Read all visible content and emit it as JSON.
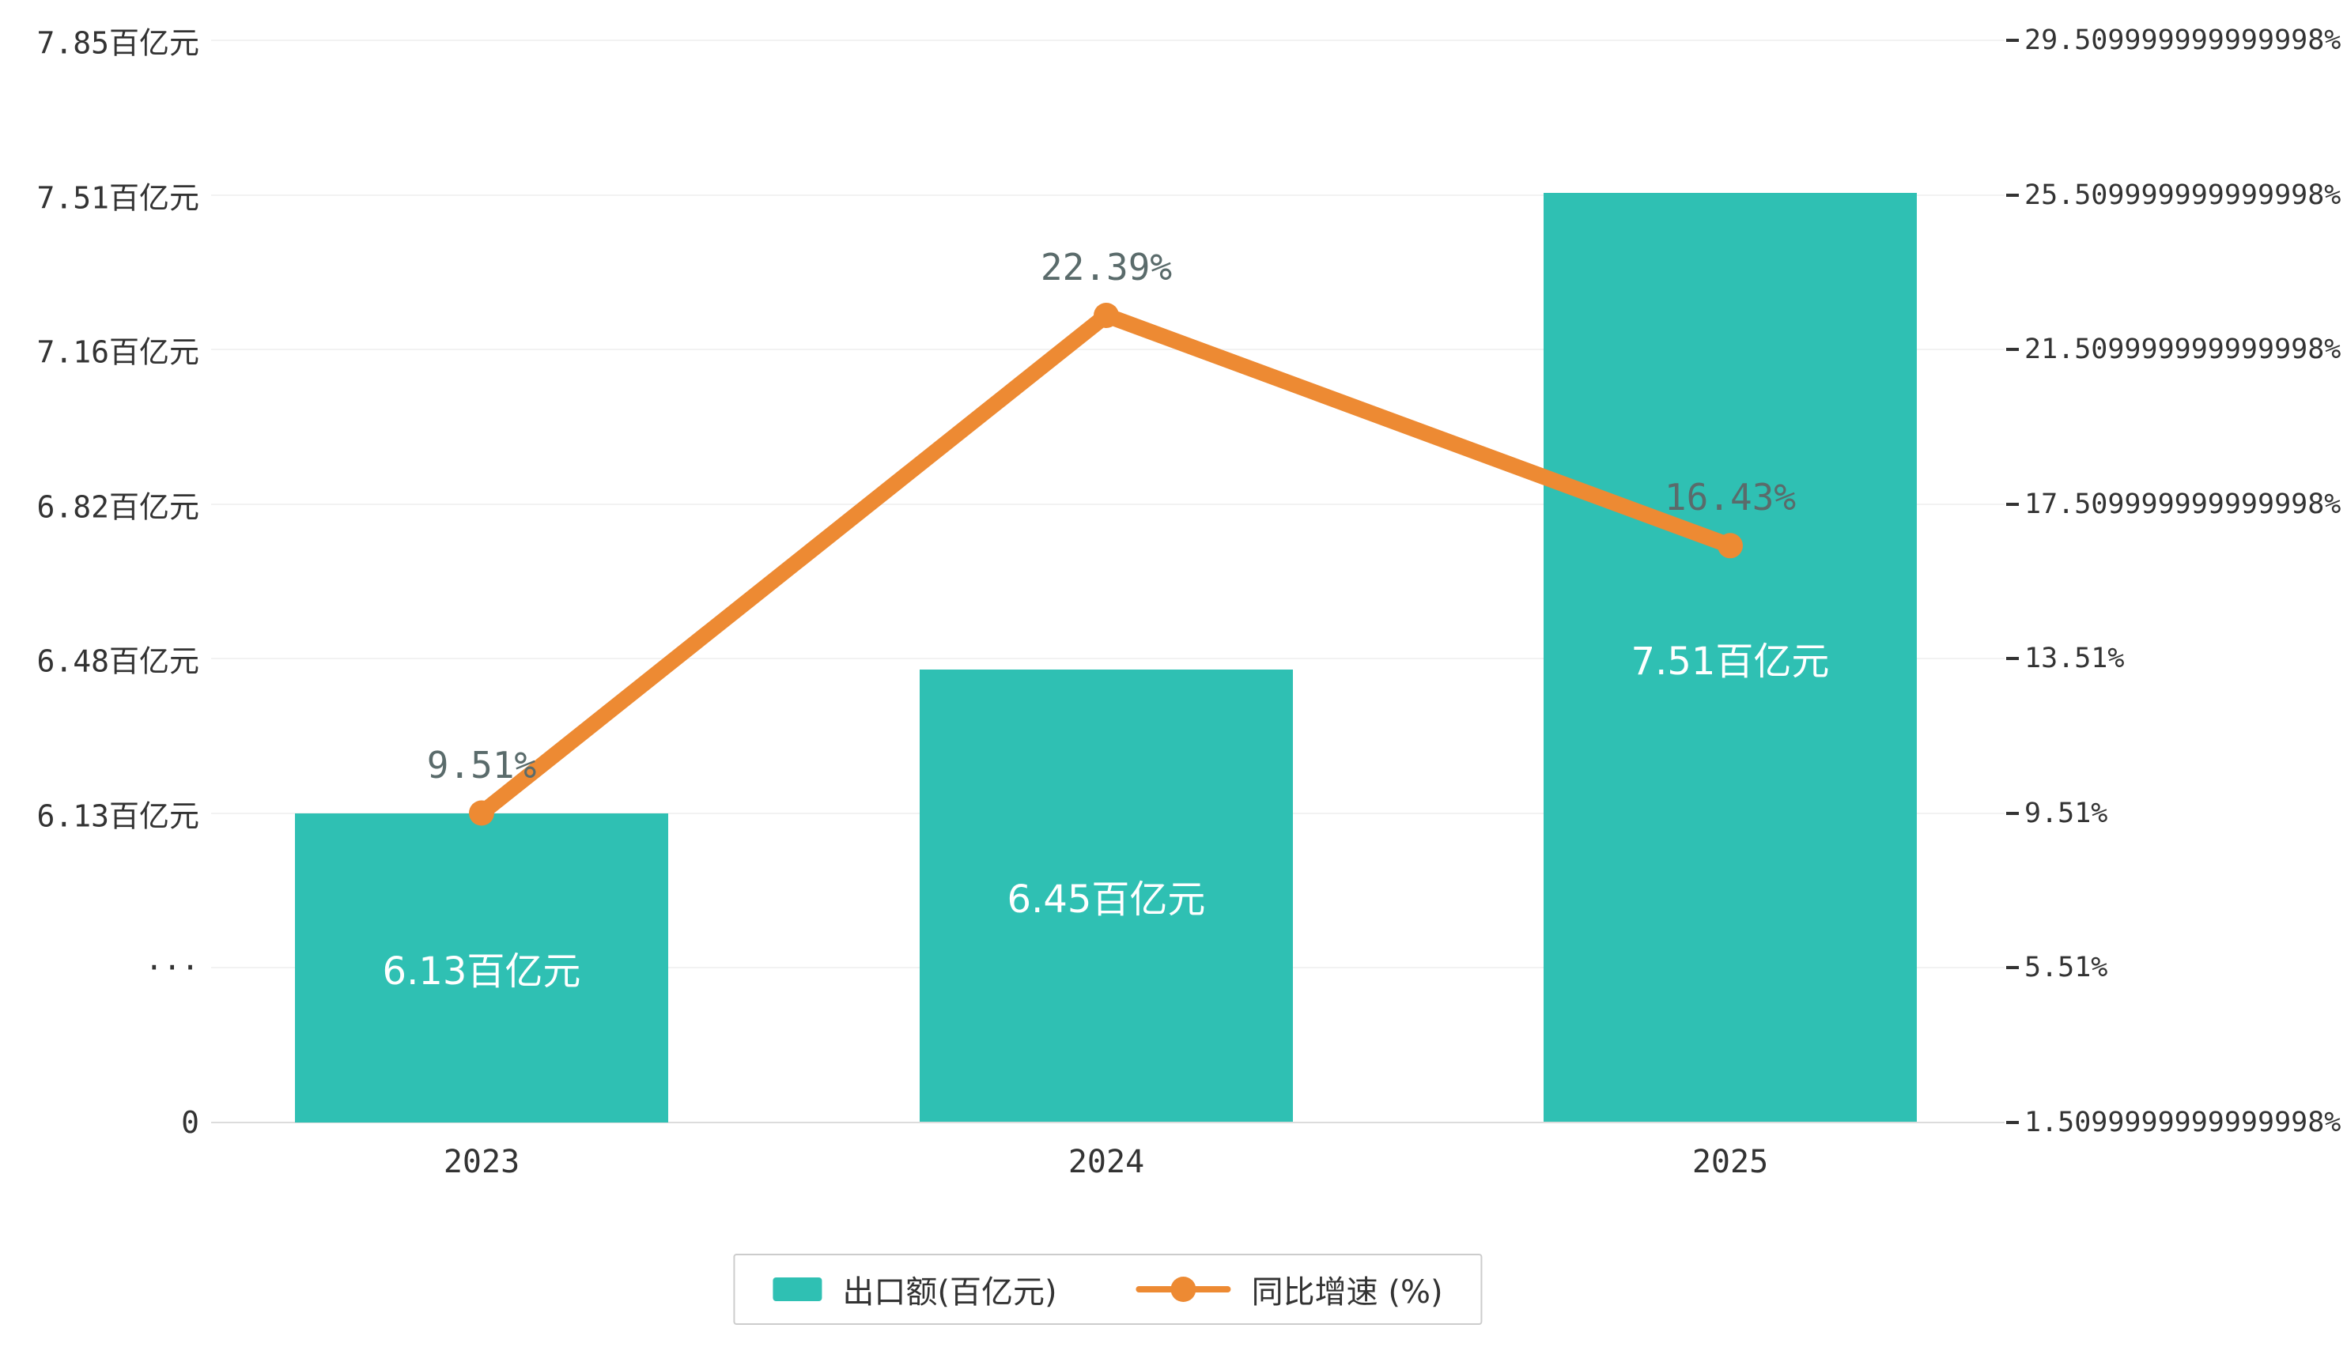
{
  "chart_data": {
    "type": "bar+line",
    "title": "",
    "categories": [
      "2023",
      "2024",
      "2025"
    ],
    "series": [
      {
        "name": "出口额(百亿元)",
        "type": "bar",
        "color": "#2FC0B3",
        "values": [
          6.13,
          6.45,
          7.51
        ],
        "labels": [
          "6.13百亿元",
          "6.45百亿元",
          "7.51百亿元"
        ]
      },
      {
        "name": "同比增速 (%)",
        "type": "line",
        "color": "#ED8A33",
        "values": [
          9.51,
          22.39,
          16.43
        ],
        "labels": [
          "9.51%",
          "22.39%",
          "16.43%"
        ]
      }
    ],
    "left_axis": {
      "unit": "百亿元",
      "ticks": [
        "7.85百亿元",
        "7.51百亿元",
        "7.16百亿元",
        "6.82百亿元",
        "6.48百亿元",
        "6.13百亿元",
        "···",
        "0"
      ],
      "tick_values": [
        7.85,
        7.51,
        7.16,
        6.82,
        6.48,
        6.13,
        null,
        0
      ],
      "axis_break": true
    },
    "right_axis": {
      "unit": "%",
      "ticks": [
        "29.509999999999998%",
        "25.509999999999998%",
        "21.509999999999998%",
        "17.509999999999998%",
        "13.51%",
        "9.51%",
        "5.51%",
        "1.5099999999999998%"
      ],
      "tick_values": [
        29.51,
        25.51,
        21.51,
        17.51,
        13.51,
        9.51,
        5.51,
        1.51
      ]
    },
    "legend": {
      "position": "bottom",
      "items": [
        {
          "label": "出口额(百亿元)",
          "marker": "rect",
          "color": "#2FC0B3"
        },
        {
          "label": "同比增速 (%)",
          "marker": "line-dot",
          "color": "#ED8A33"
        }
      ]
    },
    "grid": true
  }
}
